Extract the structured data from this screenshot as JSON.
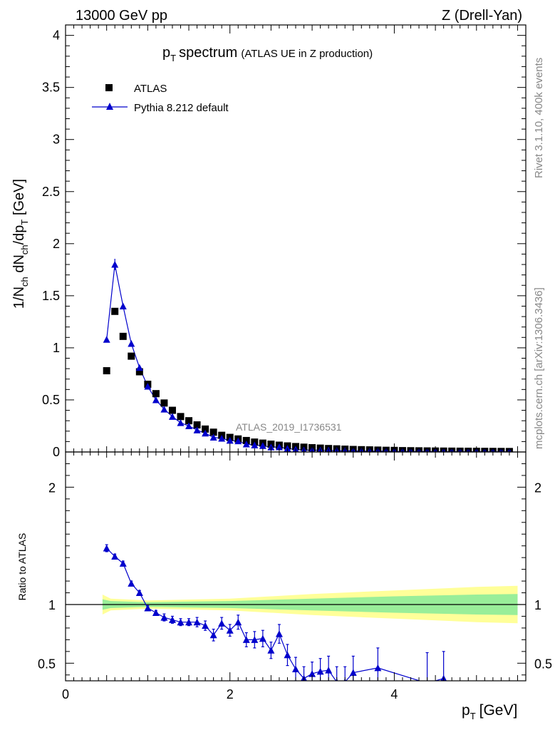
{
  "header": {
    "left": "13000 GeV pp",
    "right": "Z (Drell-Yan)"
  },
  "side": {
    "rivet": "Rivet 3.1.10,  400k events",
    "source": "mcplots.cern.ch [arXiv:1306.3436]"
  },
  "chart_data": [
    {
      "type": "scatter",
      "title_main": "p",
      "title_sub": "T",
      "title_word": "spectrum",
      "title_extra": "(ATLAS UE in Z production)",
      "watermark": "ATLAS_2019_I1736531",
      "ylabel_parts": [
        "1/N",
        "ch",
        " dN",
        "ch",
        "/dp",
        "T",
        " [GeV]"
      ],
      "xlim": [
        0,
        5.6
      ],
      "ylim": [
        0,
        4.1
      ],
      "yticks": [
        {
          "v": 0,
          "label": "0"
        },
        {
          "v": 0.5,
          "label": "0.5"
        },
        {
          "v": 1,
          "label": "1"
        },
        {
          "v": 1.5,
          "label": "1.5"
        },
        {
          "v": 2,
          "label": "2"
        },
        {
          "v": 2.5,
          "label": "2.5"
        },
        {
          "v": 3,
          "label": "3"
        },
        {
          "v": 3.5,
          "label": "3.5"
        },
        {
          "v": 4,
          "label": "4"
        }
      ],
      "legend": [
        {
          "name": "ATLAS",
          "marker": "square",
          "color": "#000000"
        },
        {
          "name": "Pythia 8.212 default",
          "marker": "triangle",
          "color": "#0000cc"
        }
      ],
      "x": [
        0.5,
        0.6,
        0.7,
        0.8,
        0.9,
        1.0,
        1.1,
        1.2,
        1.3,
        1.4,
        1.5,
        1.6,
        1.7,
        1.8,
        1.9,
        2.0,
        2.1,
        2.2,
        2.3,
        2.4,
        2.5,
        2.6,
        2.7,
        2.8,
        2.9,
        3.0,
        3.1,
        3.2,
        3.3,
        3.4,
        3.5,
        3.6,
        3.7,
        3.8,
        3.9,
        4.0,
        4.1,
        4.2,
        4.3,
        4.4,
        4.5,
        4.6,
        4.7,
        4.8,
        4.9,
        5.0,
        5.1,
        5.2,
        5.3,
        5.4
      ],
      "series": [
        {
          "name": "ATLAS",
          "values": [
            0.78,
            1.35,
            1.11,
            0.92,
            0.77,
            0.65,
            0.56,
            0.47,
            0.4,
            0.34,
            0.3,
            0.26,
            0.22,
            0.19,
            0.16,
            0.14,
            0.125,
            0.11,
            0.095,
            0.085,
            0.075,
            0.065,
            0.058,
            0.052,
            0.046,
            0.041,
            0.037,
            0.033,
            0.03,
            0.027,
            0.024,
            0.022,
            0.02,
            0.018,
            0.016,
            0.015,
            0.013,
            0.012,
            0.011,
            0.01,
            0.009,
            0.0085,
            0.008,
            0.0075,
            0.007,
            0.0065,
            0.006,
            0.0055,
            0.005,
            0.0045
          ]
        },
        {
          "name": "Pythia 8.212 default",
          "values": [
            1.08,
            1.8,
            1.4,
            1.04,
            0.81,
            0.63,
            0.5,
            0.41,
            0.34,
            0.28,
            0.25,
            0.21,
            0.18,
            0.14,
            0.13,
            0.11,
            0.105,
            0.075,
            0.066,
            0.06,
            0.046,
            0.048,
            0.033,
            0.025,
            0.017,
            0.018,
            0.016,
            0.015,
            0.011,
            0.011,
            0.01,
            0.008,
            0.007,
            0.008,
            0.006,
            0.005,
            0.005,
            0.004,
            0.004,
            0.004,
            0.003,
            0.003,
            0.003,
            0.003,
            0.002,
            0.002,
            0.002,
            0.002,
            0.002,
            0.002
          ]
        }
      ]
    },
    {
      "type": "line",
      "ylabel": "Ratio to ATLAS",
      "xlabel_main": "p",
      "xlabel_sub": "T",
      "xlabel_unit": "[GeV]",
      "xlim": [
        0,
        5.6
      ],
      "ylim": [
        0.35,
        2.3
      ],
      "xticks": [
        {
          "v": 0,
          "label": "0"
        },
        {
          "v": 2,
          "label": "2"
        },
        {
          "v": 4,
          "label": "4"
        }
      ],
      "yticks": [
        {
          "v": 0.5,
          "label": "0.5"
        },
        {
          "v": 1,
          "label": "1"
        },
        {
          "v": 2,
          "label": "2"
        }
      ],
      "band_x": [
        0.45,
        0.55,
        1.0,
        2.0,
        3.0,
        4.0,
        5.0,
        5.5
      ],
      "band_inner": [
        0.045,
        0.03,
        0.02,
        0.03,
        0.05,
        0.07,
        0.085,
        0.09
      ],
      "band_outer": [
        0.085,
        0.05,
        0.035,
        0.05,
        0.09,
        0.12,
        0.15,
        0.16
      ],
      "ratio_x": [
        0.5,
        0.6,
        0.7,
        0.8,
        0.9,
        1.0,
        1.1,
        1.2,
        1.3,
        1.4,
        1.5,
        1.6,
        1.7,
        1.8,
        1.9,
        2.0,
        2.1,
        2.2,
        2.3,
        2.4,
        2.5,
        2.6,
        2.7,
        2.8,
        2.9,
        3.0,
        3.1,
        3.2,
        3.3,
        3.4,
        3.5,
        3.8,
        4.4,
        4.6
      ],
      "ratio_values": [
        1.48,
        1.41,
        1.35,
        1.18,
        1.1,
        0.97,
        0.93,
        0.89,
        0.87,
        0.85,
        0.85,
        0.85,
        0.82,
        0.74,
        0.84,
        0.78,
        0.85,
        0.7,
        0.7,
        0.71,
        0.61,
        0.75,
        0.57,
        0.45,
        0.37,
        0.41,
        0.43,
        0.44,
        0.34,
        0.34,
        0.42,
        0.46,
        0.33,
        0.37
      ],
      "ratio_errors": [
        0.03,
        0.02,
        0.02,
        0.02,
        0.02,
        0.02,
        0.02,
        0.03,
        0.03,
        0.03,
        0.03,
        0.04,
        0.04,
        0.05,
        0.05,
        0.05,
        0.06,
        0.06,
        0.07,
        0.07,
        0.07,
        0.08,
        0.09,
        0.1,
        0.1,
        0.1,
        0.11,
        0.12,
        0.13,
        0.13,
        0.14,
        0.17,
        0.26,
        0.23
      ]
    }
  ]
}
